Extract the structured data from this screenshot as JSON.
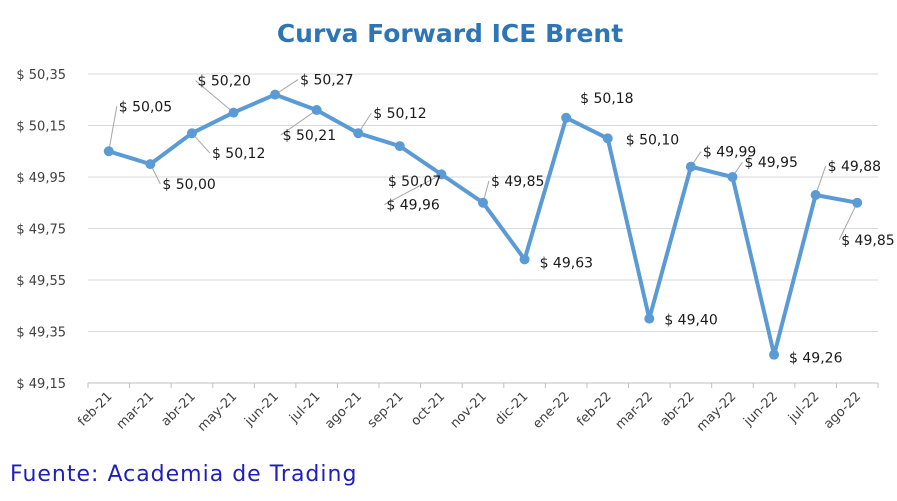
{
  "chart_data": {
    "type": "line",
    "title": "Curva Forward ICE Brent",
    "categories": [
      "feb-21",
      "mar-21",
      "abr-21",
      "may-21",
      "jun-21",
      "jul-21",
      "ago-21",
      "sep-21",
      "oct-21",
      "nov-21",
      "dic-21",
      "ene-22",
      "feb-22",
      "mar-22",
      "abr-22",
      "may-22",
      "jun-22",
      "jul-22",
      "ago-22"
    ],
    "values": [
      50.05,
      50.0,
      50.12,
      50.2,
      50.27,
      50.21,
      50.12,
      50.07,
      49.96,
      49.85,
      49.63,
      50.18,
      50.1,
      49.4,
      49.99,
      49.95,
      49.26,
      49.88,
      49.85
    ],
    "data_labels": [
      "$ 50,05",
      "$ 50,00",
      "$ 50,12",
      "$ 50,20",
      "$ 50,27",
      "$ 50,21",
      "$ 50,12",
      "$ 50,07",
      "$ 49,96",
      "$ 49,85",
      "$ 49,63",
      "$ 50,18",
      "$ 50,10",
      "$ 49,40",
      "$ 49,99",
      "$ 49,95",
      "$ 49,26",
      "$ 49,88",
      "$ 49,85"
    ],
    "yticks": [
      49.15,
      49.35,
      49.55,
      49.75,
      49.95,
      50.15,
      50.35
    ],
    "ytick_labels": [
      "$ 49,15",
      "$ 49,35",
      "$ 49,55",
      "$ 49,75",
      "$ 49,95",
      "$ 50,15",
      "$ 50,35"
    ],
    "ylim": [
      49.15,
      50.35
    ],
    "xlabel": "",
    "ylabel": "",
    "grid": true,
    "legend": "none",
    "line_color": "#5b9bd5",
    "title_color": "#2e75b6"
  },
  "source": {
    "text": "Fuente: Academia de Trading",
    "color": "#1f1fb8"
  }
}
